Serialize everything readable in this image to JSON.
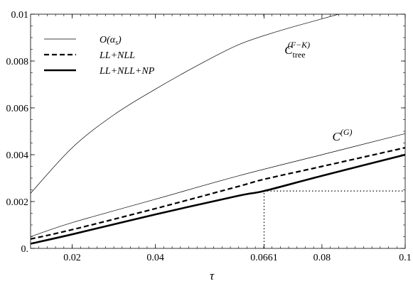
{
  "chart_data": {
    "type": "line",
    "xlabel": "τ",
    "ylabel": "",
    "xlim": [
      0.01,
      0.1
    ],
    "ylim": [
      0,
      0.01
    ],
    "x_ticks": [
      {
        "value": 0.02,
        "label": "0.02"
      },
      {
        "value": 0.04,
        "label": "0.04"
      },
      {
        "value": 0.0661,
        "label": "0.0661"
      },
      {
        "value": 0.08,
        "label": "0.08"
      },
      {
        "value": 0.1,
        "label": "0.1"
      }
    ],
    "y_ticks": [
      {
        "value": 0,
        "label": "0."
      },
      {
        "value": 0.002,
        "label": "0.002"
      },
      {
        "value": 0.004,
        "label": "0.004"
      },
      {
        "value": 0.006,
        "label": "0.006"
      },
      {
        "value": 0.008,
        "label": "0.008"
      },
      {
        "value": 0.01,
        "label": "0.01"
      }
    ],
    "grid": false,
    "legend_position": "top-left",
    "legend": [
      {
        "label": "O(α",
        "sub": "s",
        "tail": ")",
        "style": "thin"
      },
      {
        "label": "LL+NLL",
        "style": "dashed"
      },
      {
        "label": "LL+NLL+NP",
        "style": "thick"
      }
    ],
    "series": [
      {
        "style": "thin",
        "x": [
          0.01,
          0.02,
          0.03,
          0.04,
          0.05,
          0.06,
          0.07,
          0.08,
          0.084
        ],
        "y": [
          0.00235,
          0.0043,
          0.0057,
          0.0068,
          0.0078,
          0.0087,
          0.0093,
          0.0098,
          0.01
        ]
      },
      {
        "style": "thin",
        "x": [
          0.01,
          0.02,
          0.04,
          0.06,
          0.08,
          0.1
        ],
        "y": [
          0.0005,
          0.0011,
          0.0021,
          0.0031,
          0.004,
          0.0049
        ]
      },
      {
        "style": "dashed",
        "x": [
          0.01,
          0.02,
          0.04,
          0.06,
          0.0661,
          0.08,
          0.1
        ],
        "y": [
          0.0004,
          0.0008,
          0.0017,
          0.00265,
          0.00295,
          0.0035,
          0.0043
        ]
      },
      {
        "style": "thick",
        "x": [
          0.01,
          0.02,
          0.04,
          0.06,
          0.0661,
          0.08,
          0.1
        ],
        "y": [
          0.0002,
          0.0006,
          0.00145,
          0.00225,
          0.00245,
          0.0031,
          0.004
        ]
      }
    ],
    "reference_lines": [
      {
        "type": "vertical",
        "x": 0.0661,
        "y_from": 0,
        "y_to": 0.00245
      },
      {
        "type": "horizontal",
        "y": 0.00245,
        "x_from": 0.0661,
        "x_to": 0.1
      }
    ],
    "annotations": [
      {
        "id": "fk",
        "main": "C",
        "sub": "tree",
        "sup": "(F−K)",
        "x": 0.071,
        "y": 0.0083
      },
      {
        "id": "g",
        "main": "C",
        "sup": "(G)",
        "x": 0.0825,
        "y": 0.0046
      }
    ]
  }
}
